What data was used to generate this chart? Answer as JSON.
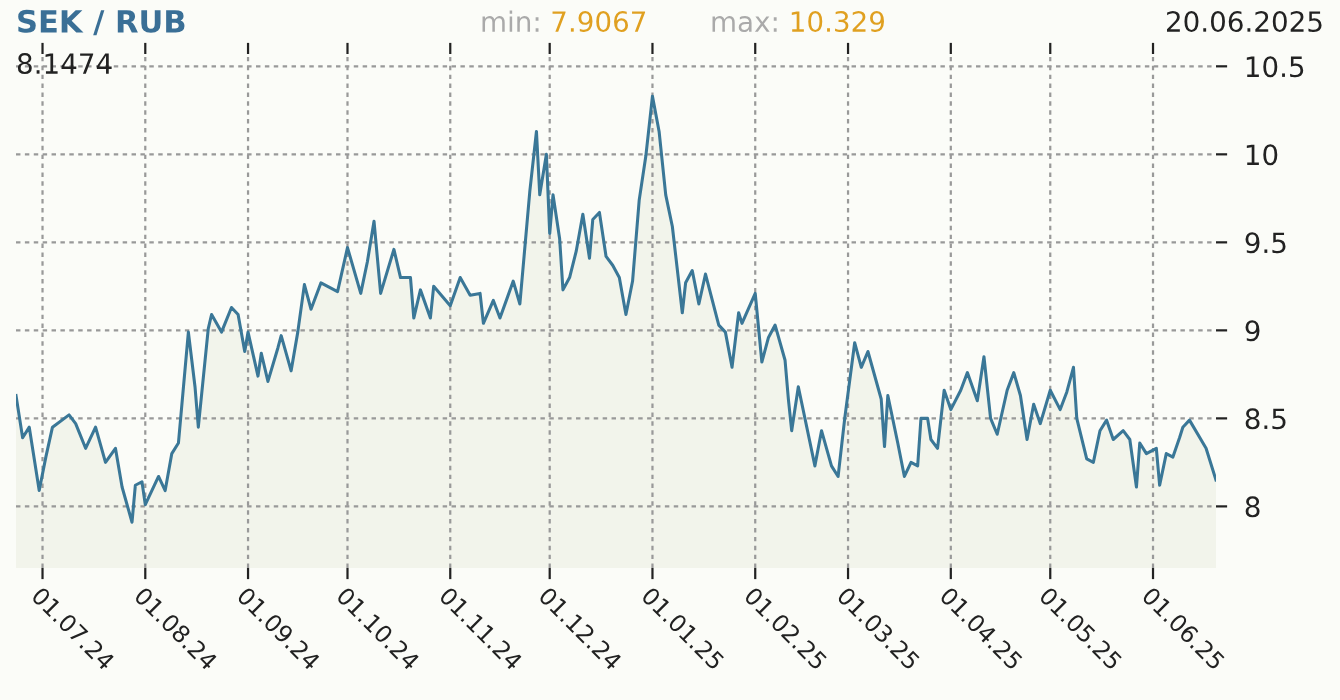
{
  "chart_data": {
    "type": "area",
    "title": "SEK / RUB",
    "annotations": [
      "min: 7.9067",
      "max: 10.329",
      "20.06.2025",
      "8.1474"
    ],
    "x": [
      "2024-06-23",
      "2024-06-25",
      "2024-06-27",
      "2024-06-30",
      "2024-07-02",
      "2024-07-04",
      "2024-07-09",
      "2024-07-11",
      "2024-07-14",
      "2024-07-17",
      "2024-07-20",
      "2024-07-23",
      "2024-07-25",
      "2024-07-28",
      "2024-07-29",
      "2024-07-31",
      "2024-08-01",
      "2024-08-05",
      "2024-08-07",
      "2024-08-09",
      "2024-08-11",
      "2024-08-14",
      "2024-08-16",
      "2024-08-17",
      "2024-08-20",
      "2024-08-21",
      "2024-08-24",
      "2024-08-27",
      "2024-08-29",
      "2024-08-31",
      "2024-09-01",
      "2024-09-04",
      "2024-09-05",
      "2024-09-07",
      "2024-09-10",
      "2024-09-11",
      "2024-09-14",
      "2024-09-16",
      "2024-09-18",
      "2024-09-20",
      "2024-09-23",
      "2024-09-28",
      "2024-10-01",
      "2024-10-05",
      "2024-10-07",
      "2024-10-09",
      "2024-10-11",
      "2024-10-15",
      "2024-10-17",
      "2024-10-20",
      "2024-10-21",
      "2024-10-23",
      "2024-10-26",
      "2024-10-27",
      "2024-11-01",
      "2024-11-04",
      "2024-11-07",
      "2024-11-10",
      "2024-11-11",
      "2024-11-14",
      "2024-11-16",
      "2024-11-20",
      "2024-11-22",
      "2024-11-25",
      "2024-11-27",
      "2024-11-28",
      "2024-11-30",
      "2024-12-01",
      "2024-12-02",
      "2024-12-04",
      "2024-12-05",
      "2024-12-07",
      "2024-12-09",
      "2024-12-11",
      "2024-12-13",
      "2024-12-14",
      "2024-12-16",
      "2024-12-18",
      "2024-12-20",
      "2024-12-22",
      "2024-12-24",
      "2024-12-26",
      "2024-12-28",
      "2024-12-30",
      "2025-01-01",
      "2025-01-03",
      "2025-01-05",
      "2025-01-07",
      "2025-01-10",
      "2025-01-11",
      "2025-01-13",
      "2025-01-15",
      "2025-01-17",
      "2025-01-21",
      "2025-01-23",
      "2025-01-25",
      "2025-01-27",
      "2025-01-28",
      "2025-02-01",
      "2025-02-03",
      "2025-02-05",
      "2025-02-07",
      "2025-02-10",
      "2025-02-11",
      "2025-02-12",
      "2025-02-14",
      "2025-02-19",
      "2025-02-21",
      "2025-02-24",
      "2025-02-26",
      "2025-02-28",
      "2025-03-03",
      "2025-03-05",
      "2025-03-07",
      "2025-03-11",
      "2025-03-12",
      "2025-03-13",
      "2025-03-16",
      "2025-03-18",
      "2025-03-20",
      "2025-03-22",
      "2025-03-23",
      "2025-03-25",
      "2025-03-26",
      "2025-03-28",
      "2025-03-30",
      "2025-04-01",
      "2025-04-04",
      "2025-04-06",
      "2025-04-09",
      "2025-04-11",
      "2025-04-13",
      "2025-04-15",
      "2025-04-18",
      "2025-04-20",
      "2025-04-22",
      "2025-04-24",
      "2025-04-26",
      "2025-04-28",
      "2025-05-01",
      "2025-05-04",
      "2025-05-06",
      "2025-05-08",
      "2025-05-09",
      "2025-05-12",
      "2025-05-14",
      "2025-05-16",
      "2025-05-18",
      "2025-05-20",
      "2025-05-23",
      "2025-05-25",
      "2025-05-27",
      "2025-05-28",
      "2025-05-30",
      "2025-06-02",
      "2025-06-03",
      "2025-06-05",
      "2025-06-07",
      "2025-06-09",
      "2025-06-10",
      "2025-06-12",
      "2025-06-17",
      "2025-06-20"
    ],
    "series": [
      {
        "color": "#3a7797",
        "values": [
          8.63,
          8.39,
          8.45,
          8.09,
          8.28,
          8.45,
          8.52,
          8.47,
          8.33,
          8.45,
          8.25,
          8.33,
          8.11,
          7.91,
          8.12,
          8.14,
          8.01,
          8.17,
          8.09,
          8.3,
          8.36,
          8.99,
          8.68,
          8.45,
          9.01,
          9.09,
          8.99,
          9.13,
          9.09,
          8.88,
          8.99,
          8.74,
          8.87,
          8.71,
          8.9,
          8.97,
          8.77,
          8.99,
          9.26,
          9.12,
          9.27,
          9.22,
          9.47,
          9.21,
          9.39,
          9.62,
          9.21,
          9.46,
          9.3,
          9.3,
          9.07,
          9.23,
          9.07,
          9.25,
          9.14,
          9.3,
          9.2,
          9.21,
          9.04,
          9.17,
          9.07,
          9.28,
          9.15,
          9.79,
          10.13,
          9.77,
          10.0,
          9.55,
          9.77,
          9.52,
          9.23,
          9.3,
          9.45,
          9.66,
          9.41,
          9.63,
          9.67,
          9.42,
          9.37,
          9.3,
          9.09,
          9.28,
          9.74,
          9.99,
          10.33,
          10.13,
          9.77,
          9.59,
          9.1,
          9.27,
          9.34,
          9.15,
          9.32,
          9.03,
          8.99,
          8.79,
          9.1,
          9.04,
          9.21,
          8.82,
          8.96,
          9.03,
          8.83,
          8.61,
          8.43,
          8.68,
          8.23,
          8.43,
          8.23,
          8.17,
          8.5,
          8.93,
          8.79,
          8.88,
          8.61,
          8.34,
          8.63,
          8.36,
          8.17,
          8.25,
          8.23,
          8.5,
          8.5,
          8.38,
          8.33,
          8.66,
          8.55,
          8.66,
          8.76,
          8.6,
          8.85,
          8.5,
          8.41,
          8.66,
          8.76,
          8.63,
          8.38,
          8.58,
          8.47,
          8.66,
          8.55,
          8.65,
          8.79,
          8.5,
          8.27,
          8.25,
          8.43,
          8.49,
          8.38,
          8.43,
          8.38,
          8.11,
          8.36,
          8.3,
          8.33,
          8.12,
          8.3,
          8.28,
          8.39,
          8.45,
          8.49,
          8.33,
          8.15
        ]
      }
    ],
    "xlim": [
      "2024-06-23",
      "2025-06-20"
    ],
    "xticks": [
      {
        "value": "2024-07-01",
        "label": "01.07.24"
      },
      {
        "value": "2024-08-01",
        "label": "01.08.24"
      },
      {
        "value": "2024-09-01",
        "label": "01.09.24"
      },
      {
        "value": "2024-10-01",
        "label": "01.10.24"
      },
      {
        "value": "2024-11-01",
        "label": "01.11.24"
      },
      {
        "value": "2024-12-01",
        "label": "01.12.24"
      },
      {
        "value": "2025-01-01",
        "label": "01.01.25"
      },
      {
        "value": "2025-02-01",
        "label": "01.02.25"
      },
      {
        "value": "2025-03-01",
        "label": "01.03.25"
      },
      {
        "value": "2025-04-01",
        "label": "01.04.25"
      },
      {
        "value": "2025-05-01",
        "label": "01.05.25"
      },
      {
        "value": "2025-06-01",
        "label": "01.06.25"
      }
    ],
    "ylim": [
      7.65,
      10.57
    ],
    "yticks": [
      8,
      8.5,
      9,
      9.5,
      10,
      10.5
    ],
    "grid": true,
    "legend": false
  }
}
